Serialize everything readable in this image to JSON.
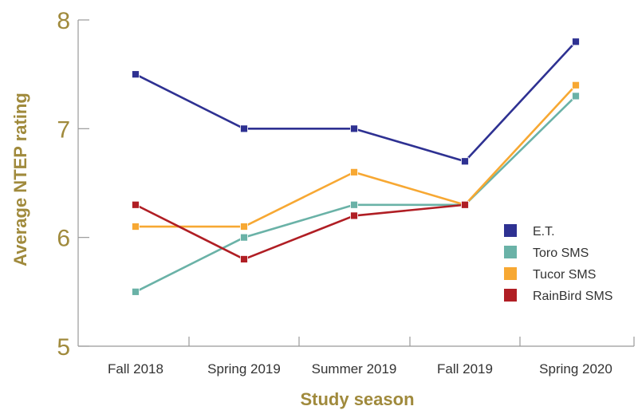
{
  "chart_data": {
    "type": "line",
    "title": "",
    "xlabel": "Study season",
    "ylabel": "Average NTEP rating",
    "categories": [
      "Fall 2018",
      "Spring 2019",
      "Summer 2019",
      "Fall 2019",
      "Spring 2020"
    ],
    "ylim": [
      5,
      8
    ],
    "yticks": [
      5,
      6,
      7,
      8
    ],
    "legend_position": "right",
    "series": [
      {
        "name": "E.T.",
        "color": "#2e3192",
        "values": [
          7.5,
          7.0,
          7.0,
          6.7,
          7.8
        ]
      },
      {
        "name": "Toro SMS",
        "color": "#6ab2a7",
        "values": [
          5.5,
          6.0,
          6.3,
          6.3,
          7.3
        ]
      },
      {
        "name": "Tucor SMS",
        "color": "#f7a833",
        "values": [
          6.1,
          6.1,
          6.6,
          6.3,
          7.4
        ]
      },
      {
        "name": "RainBird SMS",
        "color": "#b01e24",
        "values": [
          6.3,
          5.8,
          6.2,
          6.3,
          null
        ]
      }
    ]
  },
  "colors": {
    "axis": "#999999",
    "tick_label": "#a08a3c",
    "axis_title": "#a08a3c"
  }
}
